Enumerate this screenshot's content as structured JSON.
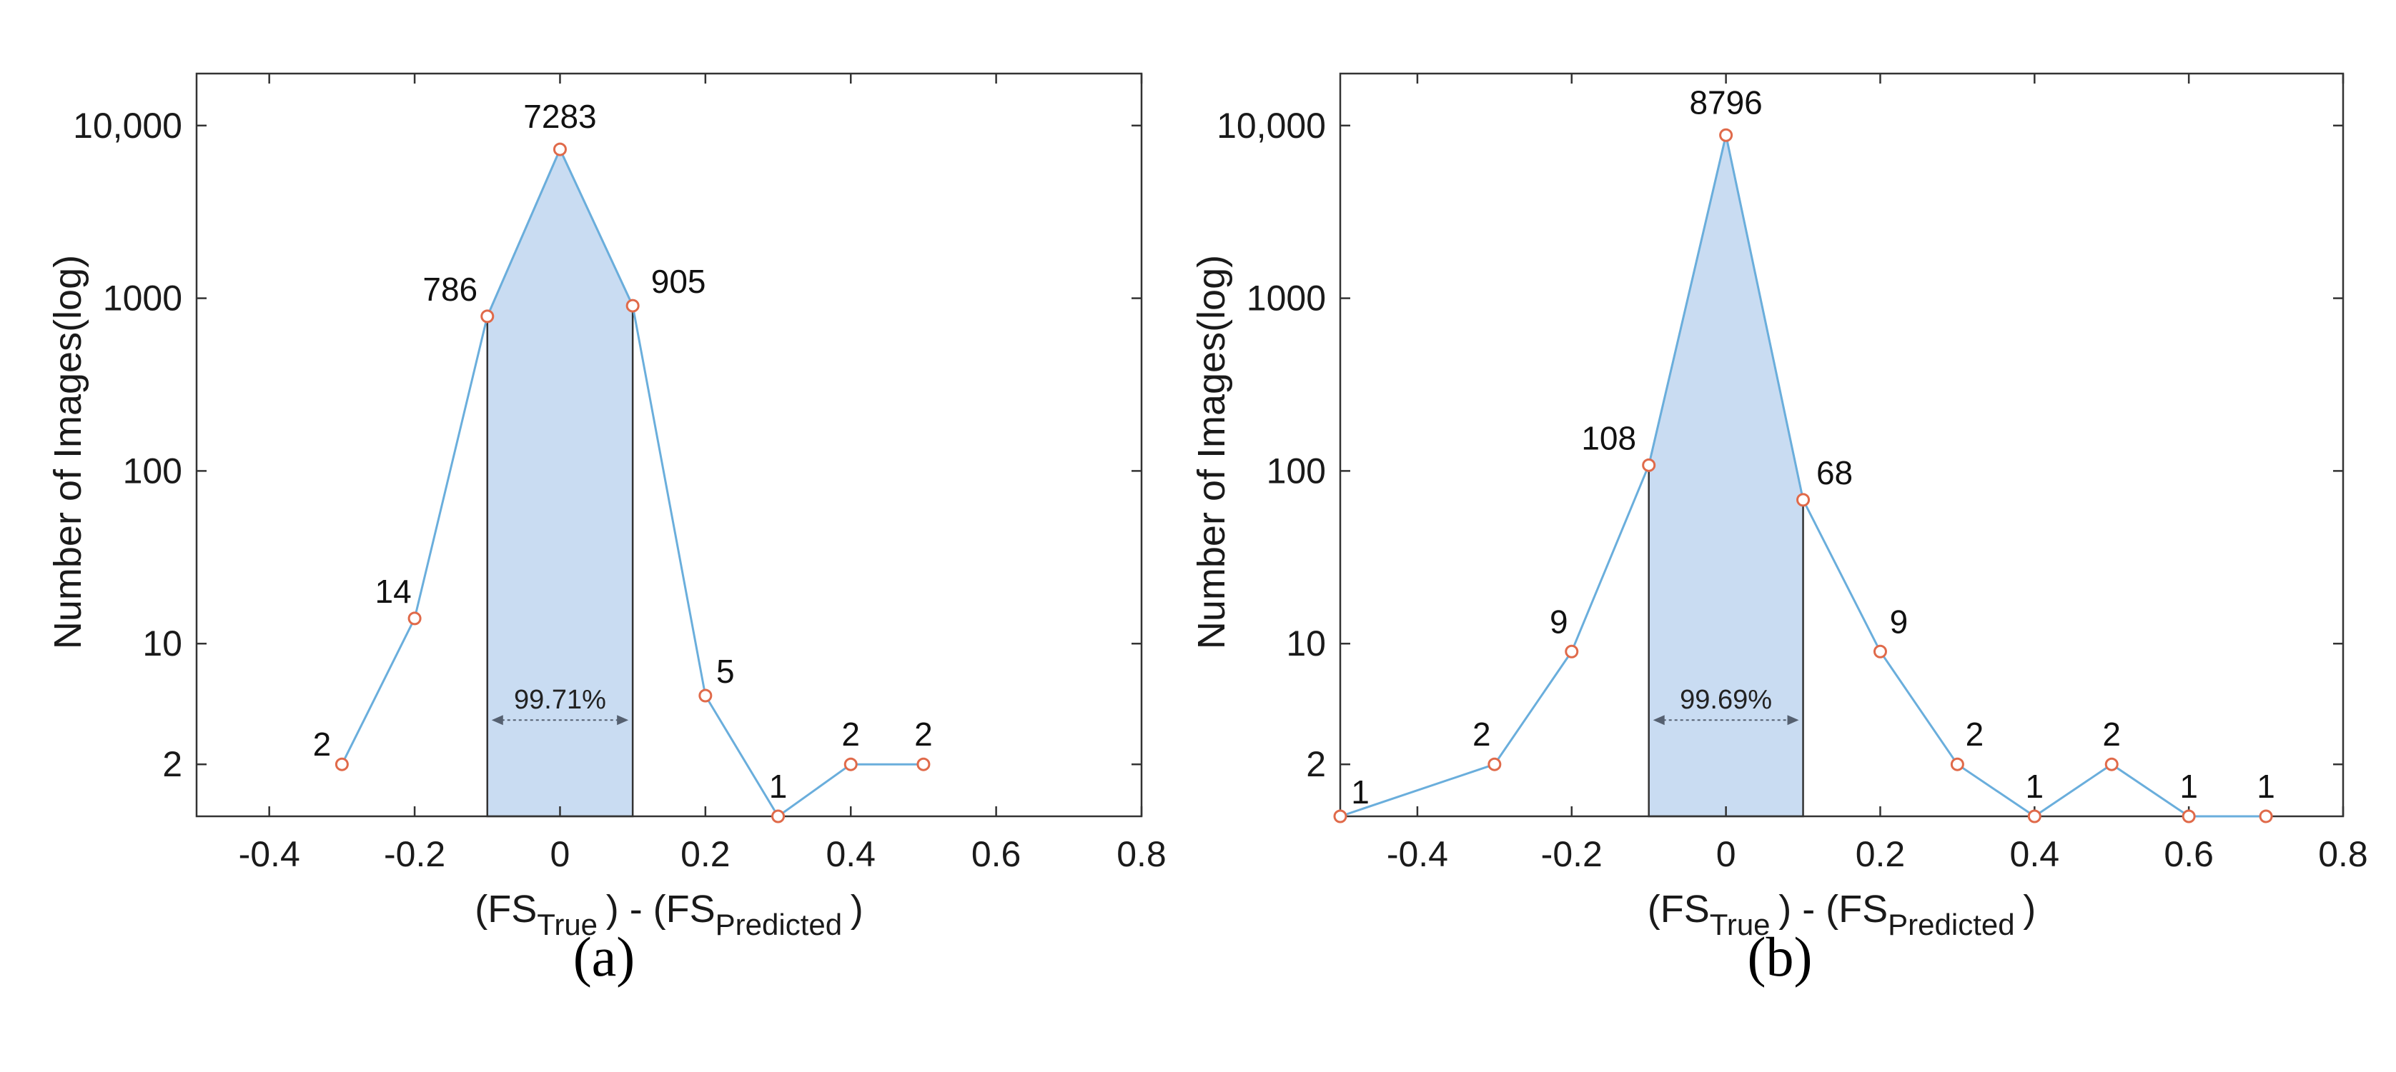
{
  "colors": {
    "line": "#6aaedc",
    "marker": "#e06a4a",
    "fill": "#c9dcf2",
    "fill_edge": "#333333",
    "axis": "#333333"
  },
  "chart_data": [
    {
      "type": "line",
      "panel_label": "(a)",
      "ylabel": "Number of Images(log)",
      "xlabel": {
        "prefix": "(FS",
        "sub1": "True",
        "middle": ") - (FS",
        "sub2": "Predicted",
        "suffix": ")"
      },
      "yscale": "log",
      "xlim": [
        -0.5,
        0.8
      ],
      "ylim": [
        1,
        20000
      ],
      "xticks": [
        -0.4,
        -0.2,
        0,
        0.2,
        0.4,
        0.6,
        0.8
      ],
      "xtick_labels": [
        "-0.4",
        "-0.2",
        "0",
        "0.2",
        "0.4",
        "0.6",
        "0.8"
      ],
      "yticks": [
        2,
        10,
        100,
        1000,
        10000
      ],
      "ytick_labels": [
        "2",
        "10",
        "100",
        "1000",
        "10,000"
      ],
      "x": [
        -0.3,
        -0.2,
        -0.1,
        0,
        0.1,
        0.2,
        0.3,
        0.4,
        0.5
      ],
      "y": [
        2,
        14,
        786,
        7283,
        905,
        5,
        1,
        2,
        2
      ],
      "point_labels": [
        "2",
        "14",
        "786",
        "7283",
        "905",
        "5",
        "1",
        "2",
        "2"
      ],
      "shaded_range": [
        -0.1,
        0.1
      ],
      "shaded_label": "99.71%"
    },
    {
      "type": "line",
      "panel_label": "(b)",
      "ylabel": "Number of Images(log)",
      "xlabel": {
        "prefix": "(FS",
        "sub1": "True",
        "middle": ") - (FS",
        "sub2": "Predicted",
        "suffix": ")"
      },
      "yscale": "log",
      "xlim": [
        -0.5,
        0.8
      ],
      "ylim": [
        1,
        20000
      ],
      "xticks": [
        -0.4,
        -0.2,
        0,
        0.2,
        0.4,
        0.6,
        0.8
      ],
      "xtick_labels": [
        "-0.4",
        "-0.2",
        "0",
        "0.2",
        "0.4",
        "0.6",
        "0.8"
      ],
      "yticks": [
        2,
        10,
        100,
        1000,
        10000
      ],
      "ytick_labels": [
        "2",
        "10",
        "100",
        "1000",
        "10,000"
      ],
      "x": [
        -0.5,
        -0.3,
        -0.2,
        -0.1,
        0,
        0.1,
        0.2,
        0.3,
        0.4,
        0.5,
        0.6,
        0.7
      ],
      "y": [
        1,
        2,
        9,
        108,
        8796,
        68,
        9,
        2,
        1,
        2,
        1,
        1
      ],
      "point_labels": [
        "1",
        "2",
        "9",
        "108",
        "8796",
        "68",
        "9",
        "2",
        "1",
        "2",
        "1",
        "1"
      ],
      "shaded_range": [
        -0.1,
        0.1
      ],
      "shaded_label": "99.69%"
    }
  ]
}
